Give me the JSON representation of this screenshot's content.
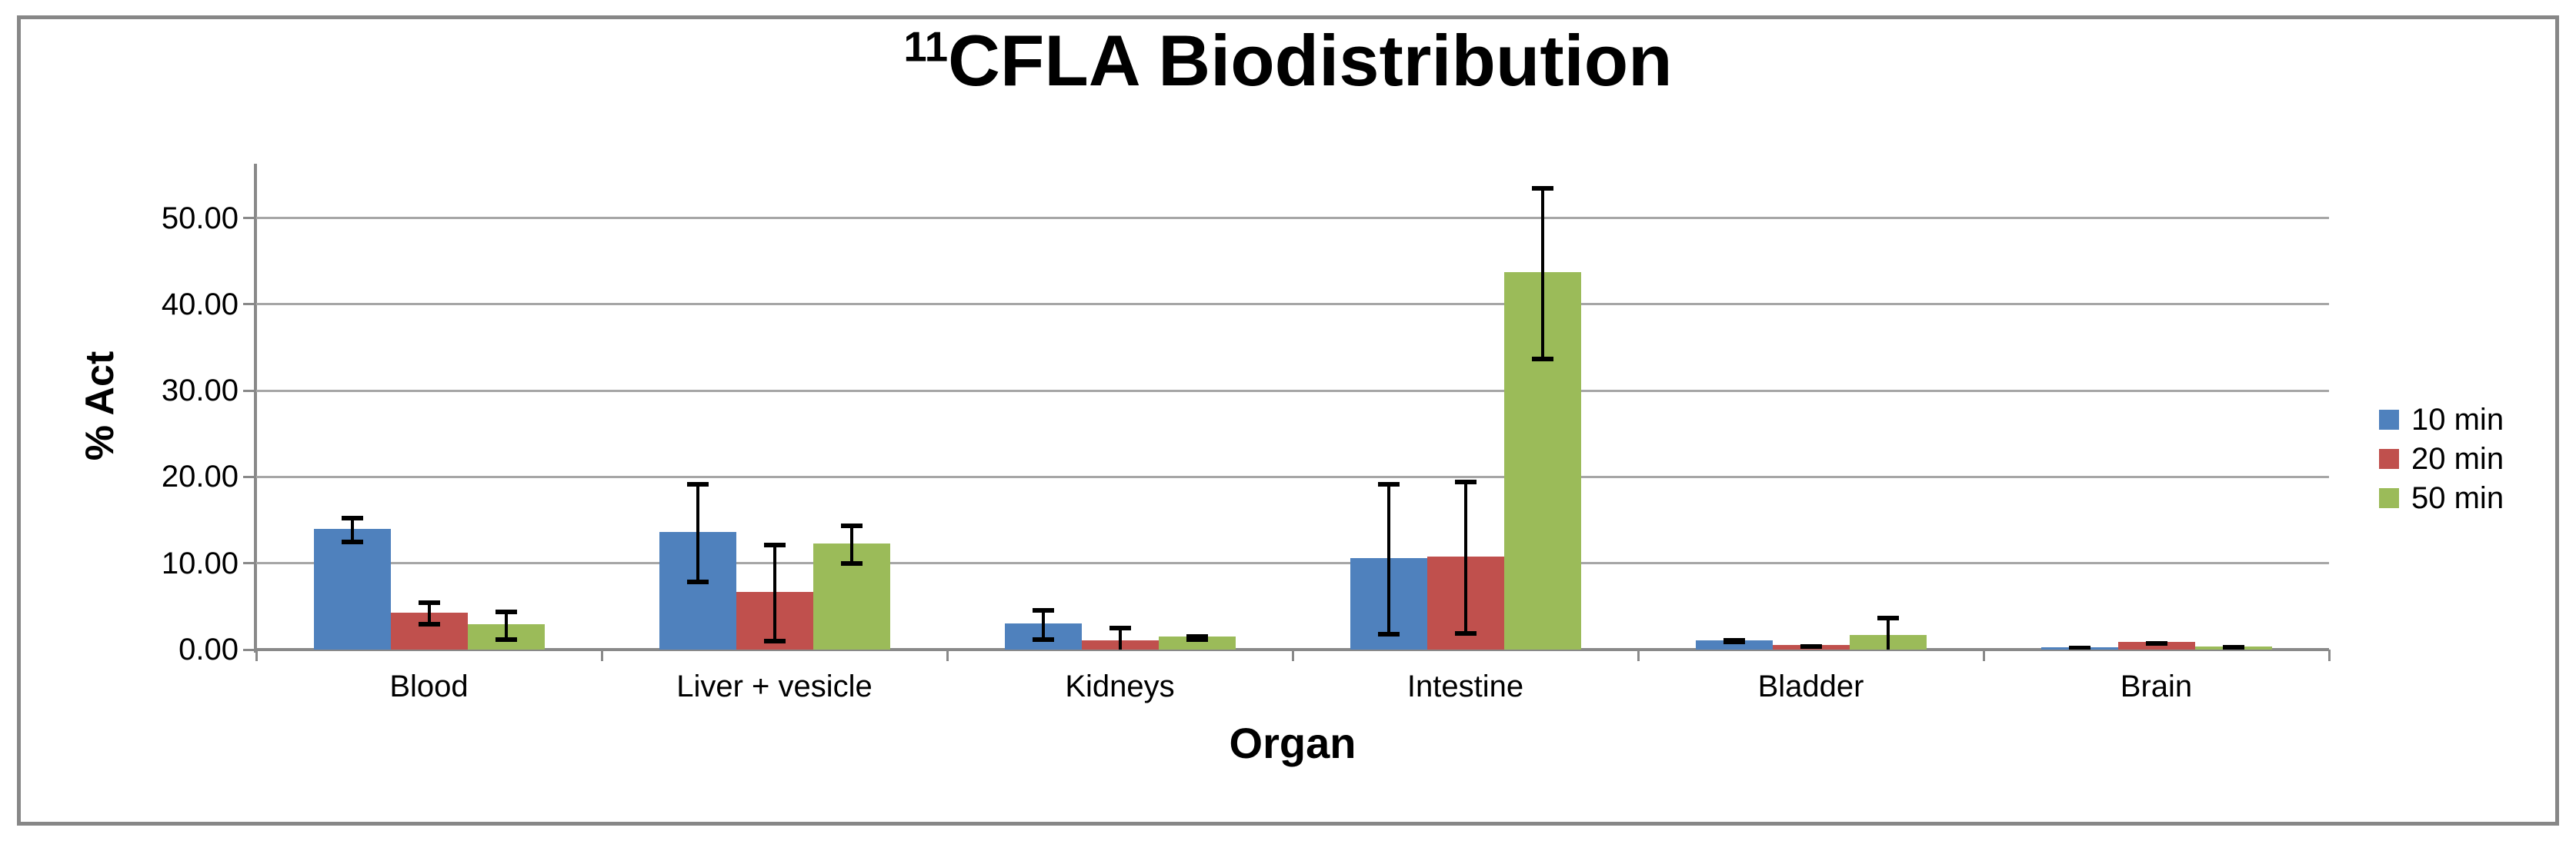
{
  "title": {
    "superscript": "11",
    "text": "CFLA Biodistribution"
  },
  "y_axis": {
    "label": "% Act",
    "ticks": [
      "0.00",
      "10.00",
      "20.00",
      "30.00",
      "40.00",
      "50.00"
    ]
  },
  "x_axis": {
    "label": "Organ"
  },
  "legend": {
    "items": [
      {
        "label": "10 min",
        "color": "#4F81BD"
      },
      {
        "label": "20 min",
        "color": "#C0504D"
      },
      {
        "label": "50 min",
        "color": "#9BBB59"
      }
    ]
  },
  "colors": {
    "series_blue": "#4F81BD",
    "series_red": "#C0504D",
    "series_green": "#9BBB59",
    "gridline": "#A6A6A6",
    "axis_line": "#898989",
    "frame_border": "#878787",
    "error_bar": "#000000",
    "text": "#000000"
  },
  "chart_data": {
    "type": "bar",
    "title": "11CFLA Biodistribution",
    "categories": [
      "Blood",
      "Liver + vesicle",
      "Kidneys",
      "Intestine",
      "Bladder",
      "Brain"
    ],
    "series": [
      {
        "name": "10 min",
        "color": "#4F81BD",
        "values": [
          14.0,
          13.6,
          3.0,
          10.6,
          1.1,
          0.25
        ],
        "errors": [
          1.5,
          5.8,
          1.8,
          8.8,
          0.2,
          0.1
        ]
      },
      {
        "name": "20 min",
        "color": "#C0504D",
        "values": [
          4.3,
          6.7,
          1.1,
          10.8,
          0.5,
          0.85
        ],
        "errors": [
          1.4,
          5.7,
          1.7,
          8.9,
          0.15,
          0.15
        ]
      },
      {
        "name": "50 min",
        "color": "#9BBB59",
        "values": [
          2.9,
          12.3,
          1.5,
          43.7,
          1.7,
          0.4
        ],
        "errors": [
          1.7,
          2.3,
          0.3,
          10.0,
          2.2,
          0.15
        ]
      }
    ],
    "xlabel": "Organ",
    "ylabel": "% Act",
    "ylim": [
      0,
      56.3
    ],
    "ytick_step": 10,
    "grid": true,
    "error_bars": true,
    "legend_position": "right"
  }
}
